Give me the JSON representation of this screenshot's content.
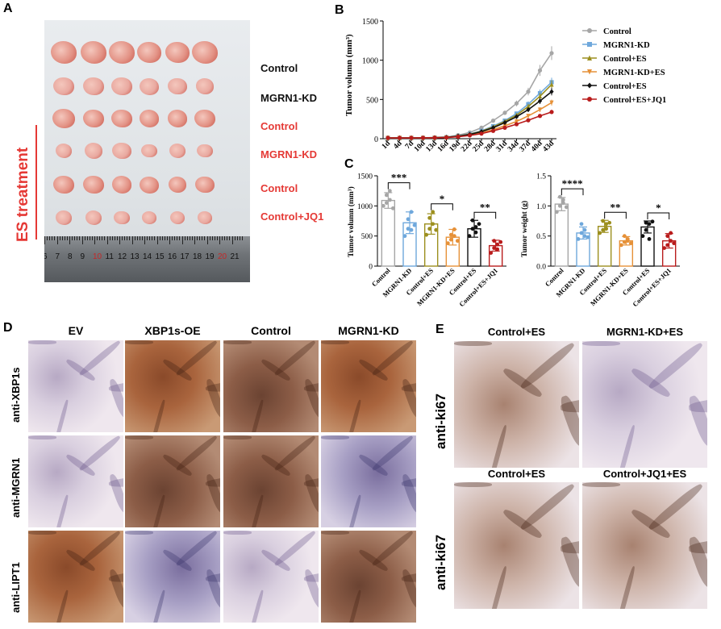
{
  "panels": {
    "a": "A",
    "b": "B",
    "c": "C",
    "d": "D",
    "e": "E"
  },
  "panel_a": {
    "rows": [
      "Control",
      "MGRN1-KD",
      "Control",
      "MGRN1-KD",
      "Control",
      "Control+JQ1"
    ],
    "row_colors": [
      "#111111",
      "#111111",
      "#e53935",
      "#e53935",
      "#e53935",
      "#e53935"
    ],
    "side_label": "ES treatment",
    "ruler_ticks": [
      "6",
      "7",
      "8",
      "9",
      "10",
      "11",
      "12",
      "13",
      "14",
      "15",
      "16",
      "17",
      "18",
      "19",
      "20",
      "21"
    ]
  },
  "chart_data": [
    {
      "type": "line",
      "ylabel": "Tumor volumn (mm³)",
      "ylim": [
        0,
        1500
      ],
      "yticks": [
        "0",
        "500",
        "1000",
        "1500"
      ],
      "x": [
        "1d",
        "4d",
        "7d",
        "10d",
        "13d",
        "16d",
        "19d",
        "22d",
        "25d",
        "28d",
        "31d",
        "34d",
        "37d",
        "40d",
        "43d"
      ],
      "legend_position": "right",
      "series": [
        {
          "name": "Control",
          "color": "#a6a6a6",
          "marker": "circle",
          "values": [
            10,
            10,
            10,
            12,
            15,
            22,
            45,
            80,
            140,
            230,
            330,
            450,
            600,
            870,
            1090
          ]
        },
        {
          "name": "MGRN1-KD",
          "color": "#6fa8dc",
          "marker": "square",
          "values": [
            10,
            10,
            10,
            11,
            13,
            18,
            35,
            60,
            100,
            160,
            230,
            320,
            440,
            580,
            720
          ]
        },
        {
          "name": "Control+ES",
          "color": "#9c8f1e",
          "marker": "triangle-up",
          "values": [
            10,
            10,
            10,
            11,
            13,
            18,
            33,
            58,
            95,
            150,
            220,
            300,
            410,
            540,
            690
          ]
        },
        {
          "name": "MGRN1-KD+ES",
          "color": "#e69138",
          "marker": "triangle-down",
          "values": [
            10,
            10,
            10,
            11,
            12,
            16,
            28,
            48,
            75,
            115,
            165,
            220,
            290,
            370,
            460
          ]
        },
        {
          "name": "Control+ES",
          "color": "#111111",
          "marker": "diamond",
          "values": [
            10,
            10,
            10,
            11,
            13,
            18,
            32,
            55,
            90,
            140,
            205,
            280,
            370,
            480,
            600
          ]
        },
        {
          "name": "Control+ES+JQ1",
          "color": "#b91c1c",
          "marker": "circle",
          "values": [
            10,
            10,
            10,
            11,
            12,
            15,
            25,
            42,
            65,
            100,
            140,
            185,
            235,
            290,
            340
          ]
        }
      ]
    },
    {
      "type": "bar",
      "ylabel": "Tumor volumn (mm³)",
      "ylim": [
        0,
        1500
      ],
      "yticks": [
        "0",
        "500",
        "1000",
        "1500"
      ],
      "categories": [
        "Control",
        "MGRN1-KD",
        "Control+ES",
        "MGRN1-KD+ES",
        "Control+ES",
        "Control+ES+JQ1"
      ],
      "colors": [
        "#a6a6a6",
        "#6fa8dc",
        "#9c8f1e",
        "#e69138",
        "#111111",
        "#b91c1c"
      ],
      "values": [
        1090,
        720,
        700,
        480,
        620,
        340
      ],
      "errors": [
        130,
        180,
        170,
        130,
        140,
        90
      ],
      "points": [
        [
          1000,
          1180,
          1250,
          1050,
          1100,
          960
        ],
        [
          500,
          620,
          900,
          780,
          600,
          680
        ],
        [
          520,
          620,
          900,
          800,
          700,
          600
        ],
        [
          380,
          520,
          610,
          440,
          500,
          420
        ],
        [
          500,
          620,
          650,
          760,
          560,
          700
        ],
        [
          220,
          300,
          360,
          420,
          280,
          400
        ]
      ],
      "significance": [
        {
          "pair": [
            0,
            1
          ],
          "label": "***"
        },
        {
          "pair": [
            2,
            3
          ],
          "label": "*"
        },
        {
          "pair": [
            4,
            5
          ],
          "label": "**"
        }
      ]
    },
    {
      "type": "bar",
      "ylabel": "Tumor weight (g)",
      "ylim": [
        0,
        1.5
      ],
      "yticks": [
        "0.0",
        "0.5",
        "1.0",
        "1.5"
      ],
      "categories": [
        "Control",
        "MGRN1-KD",
        "Control+ES",
        "MGRN1-KD+ES",
        "Control+ES",
        "Control+ES+JQ1"
      ],
      "colors": [
        "#a6a6a6",
        "#6fa8dc",
        "#9c8f1e",
        "#e69138",
        "#111111",
        "#b91c1c"
      ],
      "values": [
        1.03,
        0.55,
        0.66,
        0.42,
        0.65,
        0.42
      ],
      "errors": [
        0.11,
        0.1,
        0.1,
        0.07,
        0.1,
        0.12
      ],
      "points": [
        [
          0.9,
          1.0,
          1.1,
          1.15,
          1.05,
          0.98
        ],
        [
          0.45,
          0.55,
          0.6,
          0.7,
          0.5,
          0.48
        ],
        [
          0.55,
          0.6,
          0.7,
          0.75,
          0.62,
          0.72
        ],
        [
          0.35,
          0.4,
          0.45,
          0.5,
          0.42,
          0.38
        ],
        [
          0.5,
          0.6,
          0.7,
          0.72,
          0.45,
          0.74
        ],
        [
          0.3,
          0.35,
          0.42,
          0.5,
          0.55,
          0.38
        ]
      ],
      "significance": [
        {
          "pair": [
            0,
            1
          ],
          "label": "****"
        },
        {
          "pair": [
            2,
            3
          ],
          "label": "**"
        },
        {
          "pair": [
            4,
            5
          ],
          "label": "*"
        }
      ]
    }
  ],
  "panel_d": {
    "columns": [
      "EV",
      "XBP1s-OE",
      "Control",
      "MGRN1-KD"
    ],
    "rows": [
      "anti-XBP1s",
      "anti-MGRN1",
      "anti-LIPT1"
    ]
  },
  "panel_e": {
    "top_columns": [
      "Control+ES",
      "MGRN1-KD+ES"
    ],
    "bottom_columns": [
      "Control+ES",
      "Control+JQ1+ES"
    ],
    "row_label": "anti-ki67"
  }
}
